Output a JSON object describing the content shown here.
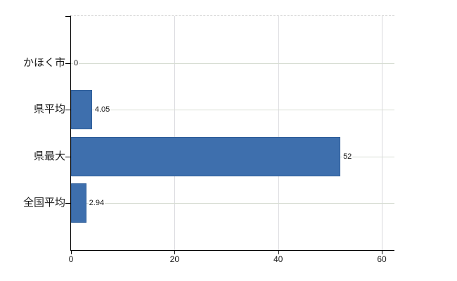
{
  "chart_data": {
    "type": "bar",
    "orientation": "horizontal",
    "title": "",
    "xlabel": "",
    "ylabel": "",
    "categories": [
      "かほく市",
      "県平均",
      "県最大",
      "全国平均"
    ],
    "values": [
      0,
      4.05,
      52,
      2.94
    ],
    "value_labels": [
      "0",
      "4.05",
      "52",
      "2.94"
    ],
    "x_ticks": [
      0,
      20,
      40,
      60
    ],
    "x_tick_labels": [
      "0",
      "20",
      "40",
      "60"
    ],
    "xlim": [
      0,
      62.4
    ],
    "grid": true,
    "legend": false,
    "colors": {
      "bar_fill": "#3E6FAD",
      "bar_border": "#2F5E99",
      "horizontal_gridline": "#d7ddd3",
      "vertical_gridline": "#d8d8dc",
      "plot_top_dashed_line": "#c9c9c9",
      "axis_line": "#000000",
      "background": "#ffffff",
      "text": "#1a1a1a"
    }
  }
}
